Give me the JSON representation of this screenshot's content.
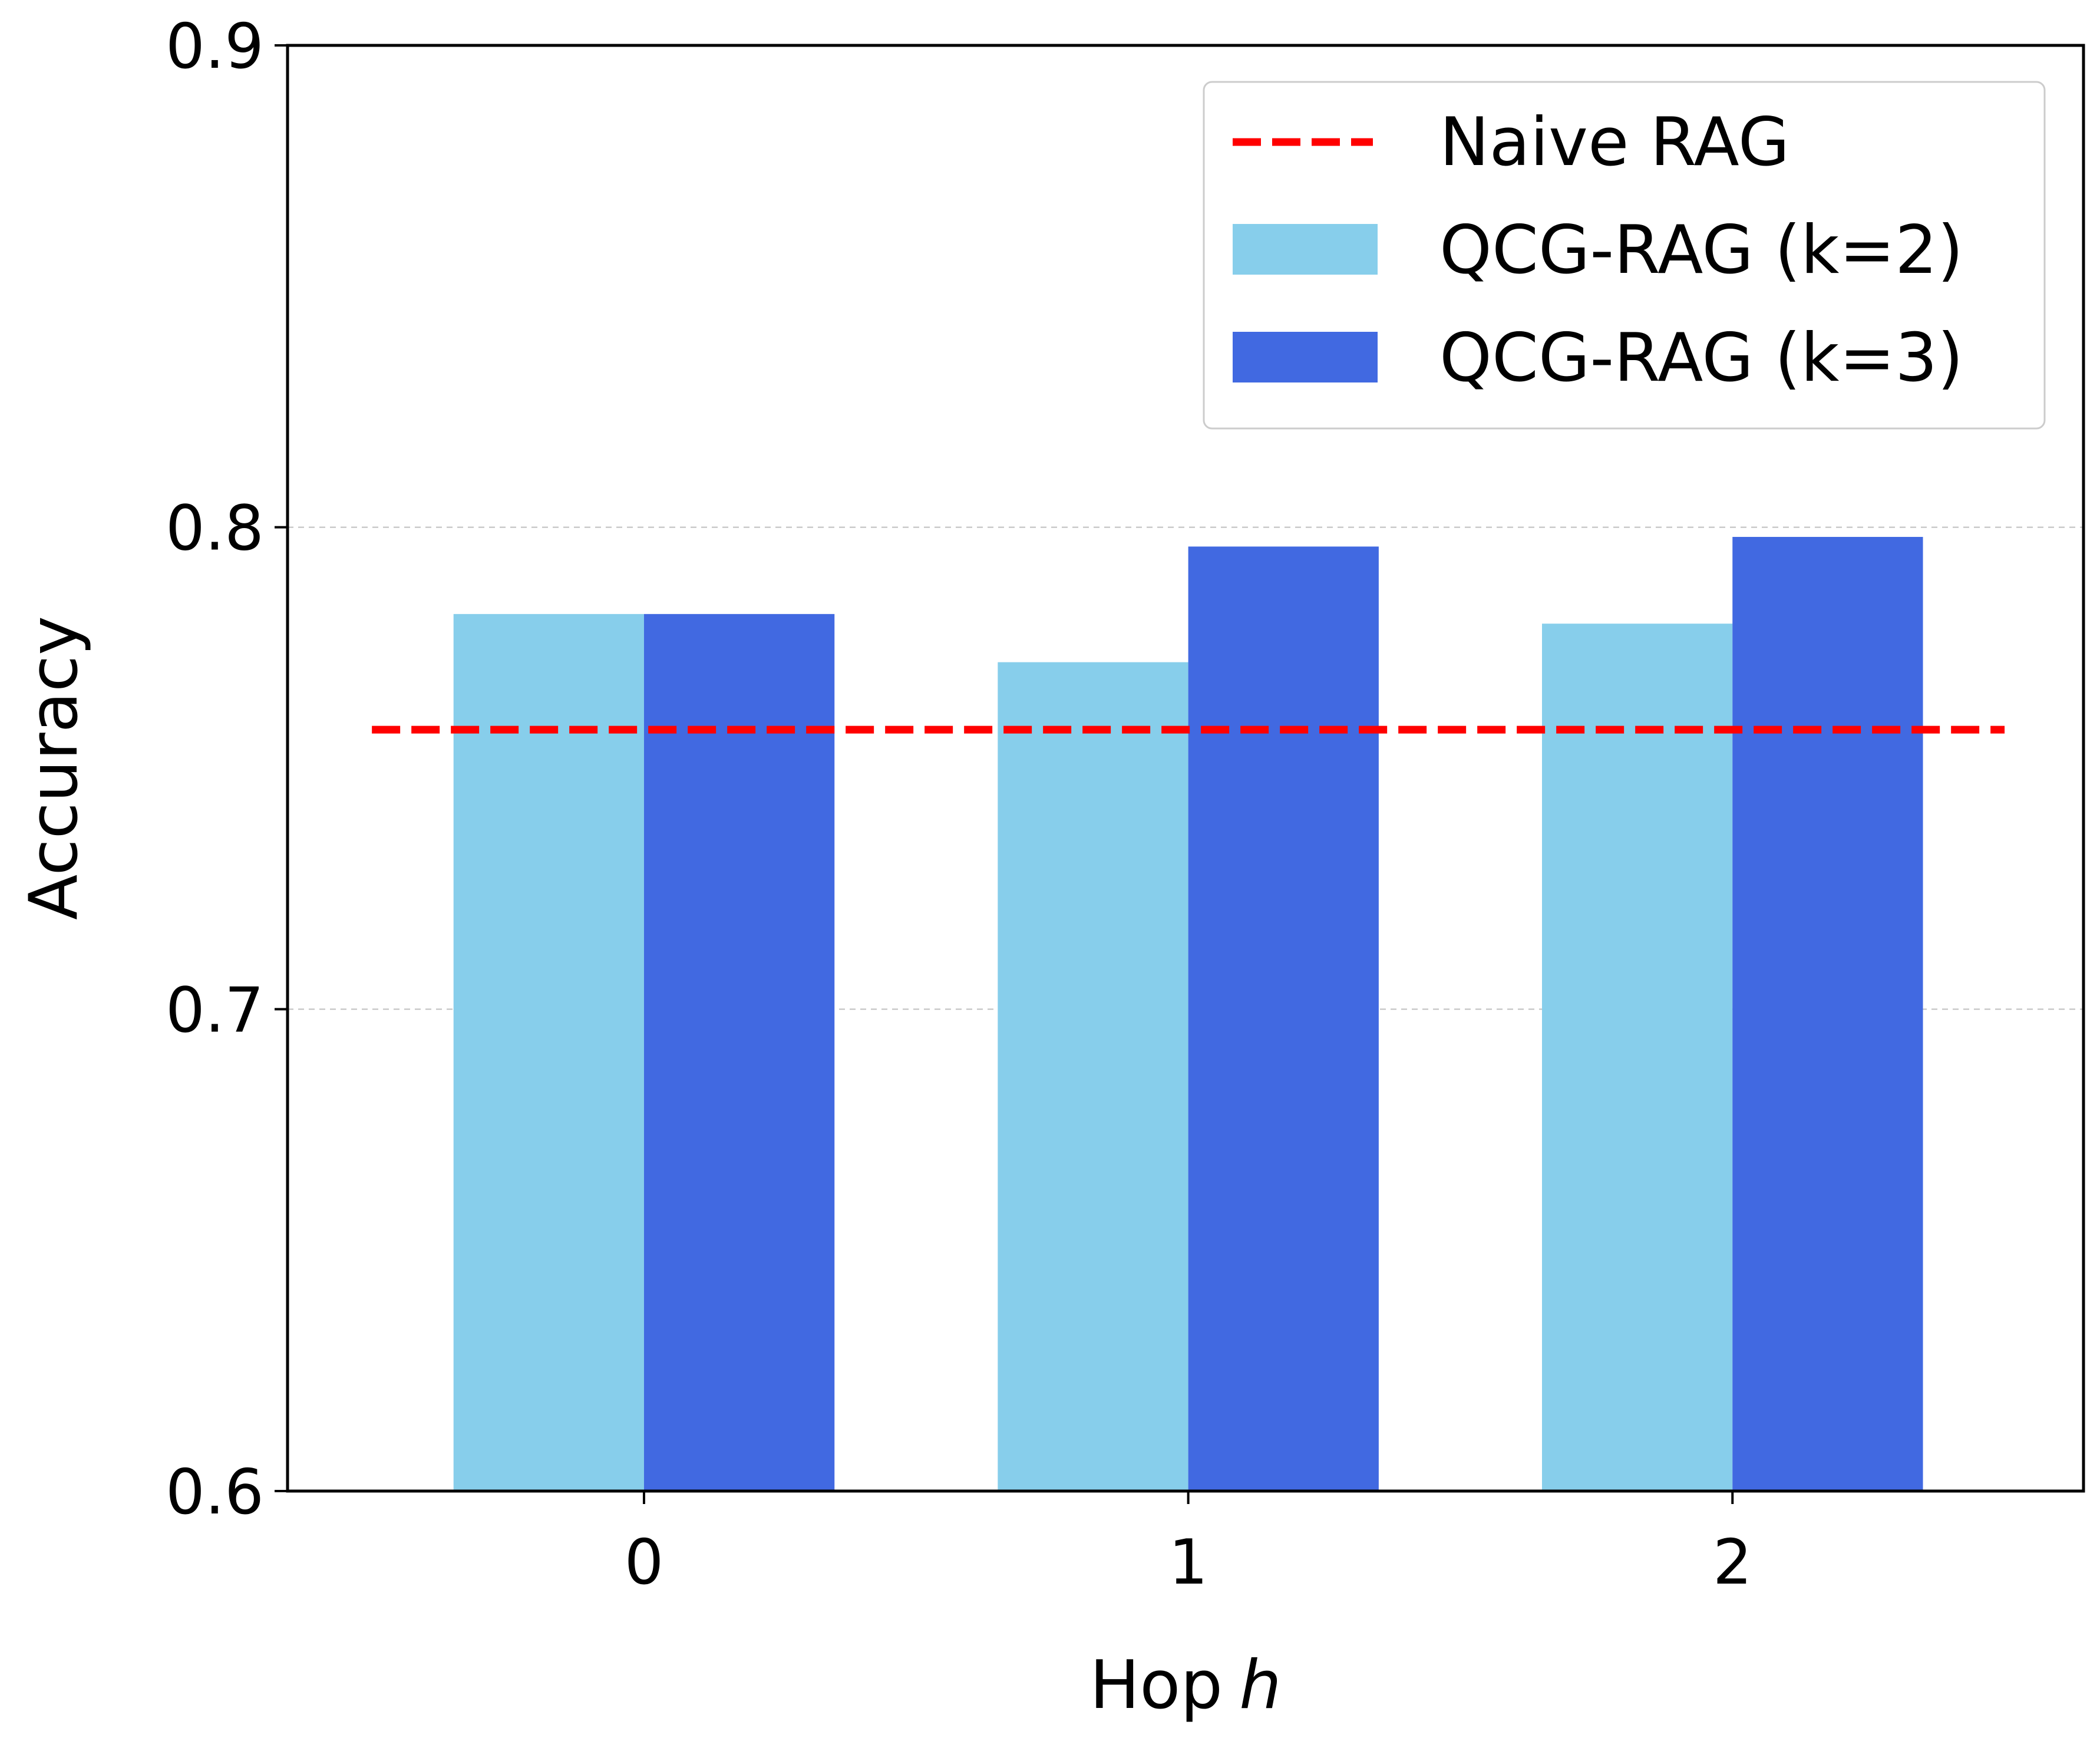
{
  "chart_data": {
    "type": "bar",
    "title": "",
    "xlabel": "Hop",
    "xlabel_var": "h",
    "ylabel": "Accuracy",
    "categories": [
      "0",
      "1",
      "2"
    ],
    "ylim": [
      0.6,
      0.9
    ],
    "yticks": [
      "0.6",
      "0.7",
      "0.8",
      "0.9"
    ],
    "grid": "horizontal dashed, y-axis only",
    "legend_position": "top-right",
    "series": [
      {
        "name": "QCG-RAG (k=2)",
        "values": [
          0.782,
          0.772,
          0.78
        ],
        "color": "#87CEEB"
      },
      {
        "name": "QCG-RAG (k=3)",
        "values": [
          0.782,
          0.796,
          0.798
        ],
        "color": "#4169E1"
      }
    ],
    "reference_line": {
      "name": "Naive RAG",
      "value": 0.758,
      "color": "#FF0000",
      "style": "dashed"
    }
  }
}
